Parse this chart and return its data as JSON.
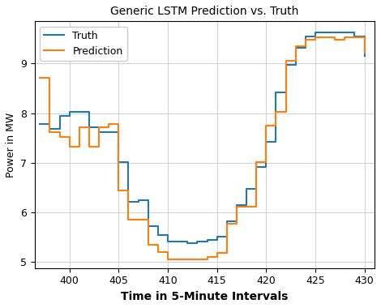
{
  "title": "Generic LSTM Prediction vs. Truth",
  "xlabel": "Time in 5-Minute Intervals",
  "ylabel": "Power in MW",
  "xlim": [
    396.5,
    431
  ],
  "ylim": [
    4.88,
    9.85
  ],
  "xticks": [
    400,
    405,
    410,
    415,
    420,
    425,
    430
  ],
  "yticks": [
    5,
    6,
    7,
    8,
    9
  ],
  "truth_color": "#1f77b4",
  "pred_color": "#ff7f0e",
  "truth_label": "Truth",
  "pred_label": "Prediction",
  "linewidth": 1.5,
  "truth_x": [
    397,
    398,
    399,
    400,
    401,
    402,
    403,
    404,
    405,
    406,
    407,
    408,
    409,
    410,
    411,
    412,
    413,
    414,
    415,
    416,
    417,
    418,
    419,
    420,
    421,
    422,
    423,
    424,
    425,
    426,
    427,
    428,
    429,
    430
  ],
  "truth_y": [
    7.78,
    7.68,
    7.95,
    8.02,
    8.02,
    7.72,
    7.62,
    7.62,
    7.02,
    6.22,
    6.25,
    5.72,
    5.55,
    5.42,
    5.42,
    5.38,
    5.42,
    5.45,
    5.52,
    5.82,
    6.15,
    6.48,
    6.92,
    7.42,
    8.42,
    8.98,
    9.32,
    9.55,
    9.62,
    9.62,
    9.62,
    9.62,
    9.55,
    9.15
  ],
  "pred_x": [
    397,
    398,
    399,
    400,
    401,
    402,
    403,
    404,
    405,
    406,
    407,
    408,
    409,
    410,
    411,
    412,
    413,
    414,
    415,
    416,
    417,
    418,
    419,
    420,
    421,
    422,
    423,
    424,
    425,
    426,
    427,
    428,
    429,
    430
  ],
  "pred_y": [
    8.72,
    7.62,
    7.52,
    7.32,
    7.72,
    7.32,
    7.72,
    7.78,
    6.45,
    5.85,
    5.85,
    5.35,
    5.2,
    5.05,
    5.05,
    5.05,
    5.05,
    5.1,
    5.18,
    5.78,
    6.12,
    6.12,
    7.02,
    7.75,
    8.02,
    9.05,
    9.35,
    9.48,
    9.52,
    9.52,
    9.48,
    9.52,
    9.52,
    9.22
  ],
  "title_fontsize": 10,
  "xlabel_fontsize": 10,
  "ylabel_fontsize": 9,
  "legend_fontsize": 9,
  "tick_fontsize": 9
}
